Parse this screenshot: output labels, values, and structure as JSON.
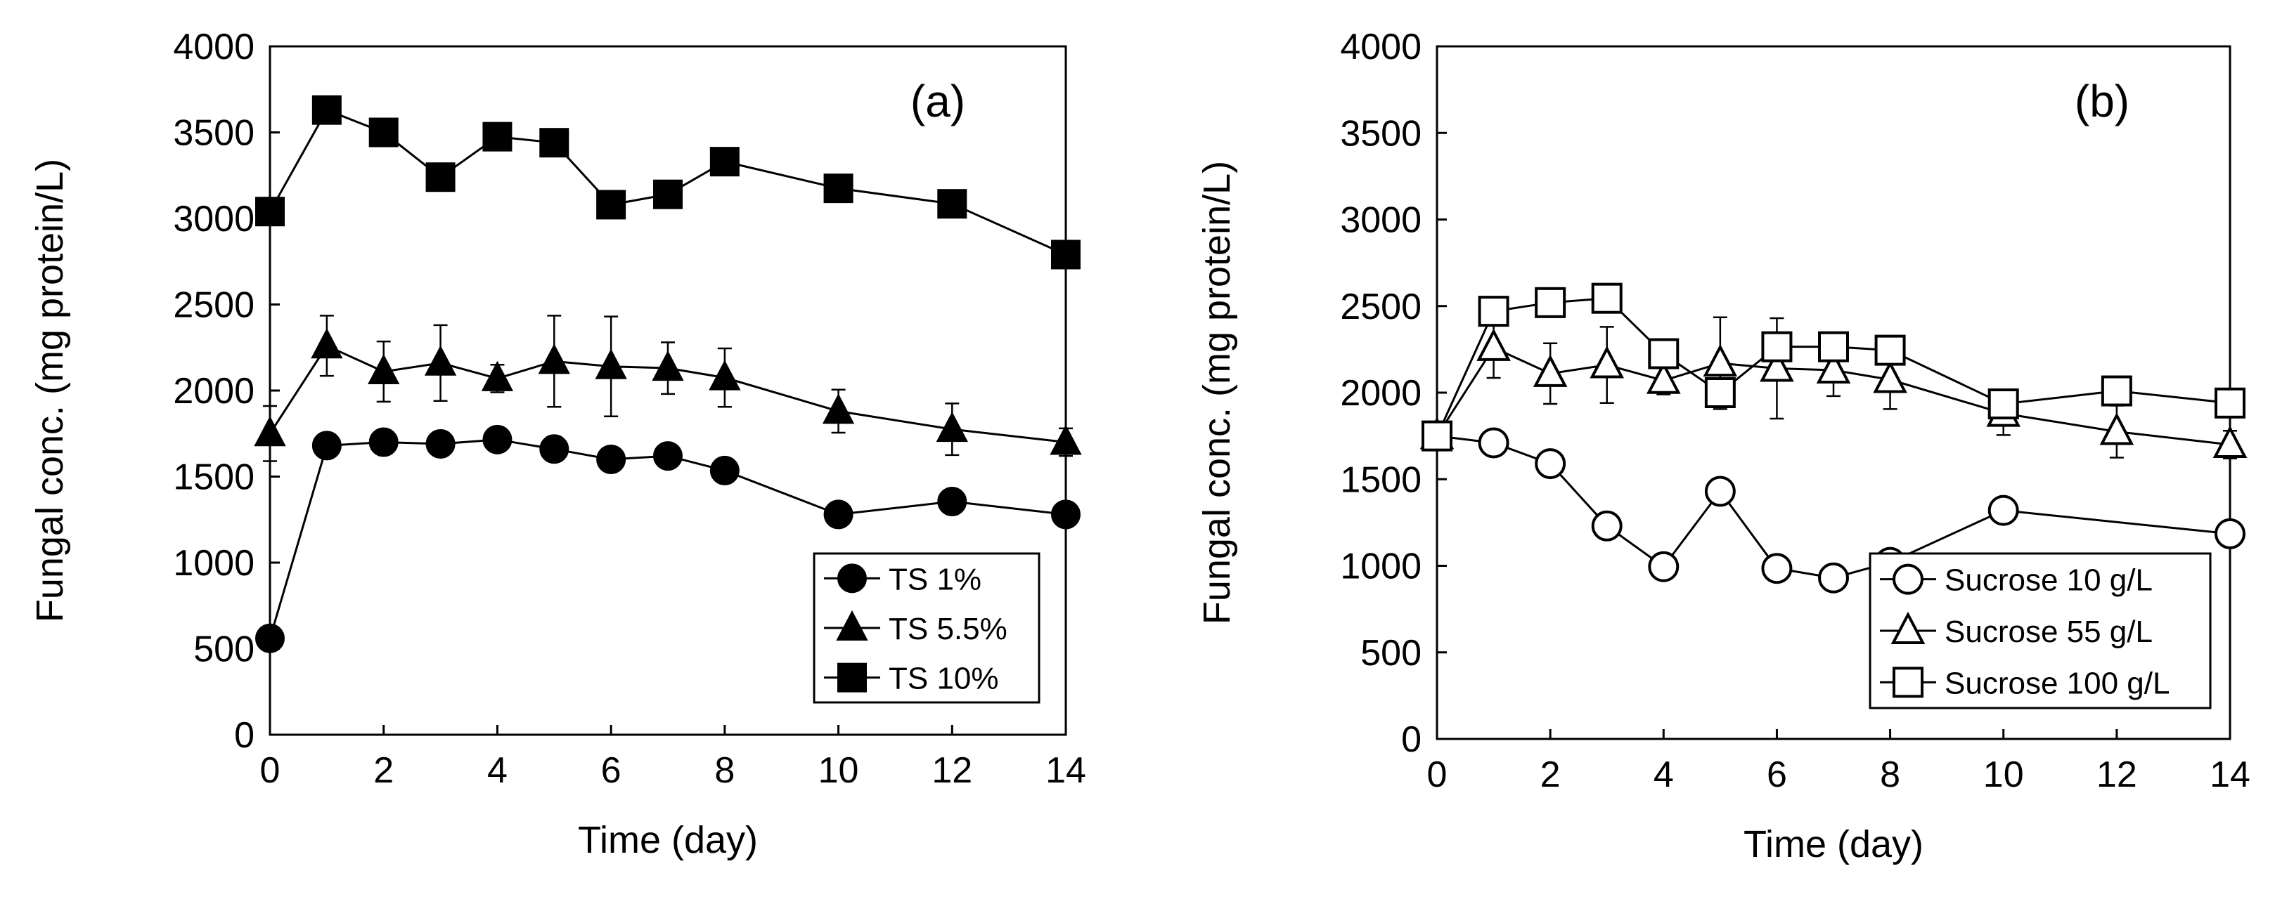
{
  "chart_data": [
    {
      "type": "line",
      "panel_label": "(a)",
      "title": "",
      "xlabel": "Time (day)",
      "ylabel": "Fungal conc. (mg protein/L)",
      "xlim": [
        0,
        14
      ],
      "ylim": [
        0,
        4000
      ],
      "xticks": [
        0,
        2,
        4,
        6,
        8,
        10,
        12,
        14
      ],
      "yticks": [
        0,
        500,
        1000,
        1500,
        2000,
        2500,
        3000,
        3500,
        4000
      ],
      "grid": false,
      "legend_position": "lower-right",
      "series": [
        {
          "name": "TS 1%",
          "marker": "circle",
          "fill": "filled",
          "x": [
            0,
            1,
            2,
            3,
            4,
            5,
            6,
            7,
            8,
            10,
            12,
            14
          ],
          "y": [
            560,
            1680,
            1700,
            1690,
            1715,
            1660,
            1600,
            1620,
            1535,
            1280,
            1355,
            1280
          ],
          "err": [
            0,
            0,
            0,
            0,
            0,
            0,
            0,
            0,
            0,
            0,
            0,
            0
          ]
        },
        {
          "name": "TS 5.5%",
          "marker": "triangle",
          "fill": "filled",
          "x": [
            0,
            1,
            2,
            3,
            4,
            5,
            6,
            7,
            8,
            10,
            12,
            14
          ],
          "y": [
            1750,
            2260,
            2110,
            2160,
            2070,
            2170,
            2140,
            2130,
            2075,
            1880,
            1775,
            1700
          ],
          "err": [
            160,
            175,
            175,
            220,
            80,
            265,
            290,
            150,
            170,
            125,
            150,
            80
          ]
        },
        {
          "name": "TS 10%",
          "marker": "square",
          "fill": "filled",
          "x": [
            0,
            1,
            2,
            3,
            4,
            5,
            6,
            7,
            8,
            10,
            12,
            14
          ],
          "y": [
            3040,
            3630,
            3500,
            3240,
            3475,
            3440,
            3080,
            3140,
            3330,
            3175,
            3085,
            2790
          ],
          "err": [
            0,
            0,
            0,
            0,
            0,
            0,
            0,
            0,
            0,
            0,
            0,
            0
          ]
        }
      ]
    },
    {
      "type": "line",
      "panel_label": "(b)",
      "title": "",
      "xlabel": "Time (day)",
      "ylabel": "Fungal conc. (mg protein/L)",
      "xlim": [
        0,
        14
      ],
      "ylim": [
        0,
        4000
      ],
      "xticks": [
        0,
        2,
        4,
        6,
        8,
        10,
        12,
        14
      ],
      "yticks": [
        0,
        500,
        1000,
        1500,
        2000,
        2500,
        3000,
        3500,
        4000
      ],
      "grid": false,
      "legend_position": "lower-right",
      "series": [
        {
          "name": "Sucrose 10 g/L",
          "marker": "circle",
          "fill": "open",
          "x": [
            0,
            1,
            2,
            3,
            4,
            5,
            6,
            7,
            8,
            10,
            14
          ],
          "y": [
            1750,
            1710,
            1590,
            1230,
            995,
            1430,
            985,
            930,
            1020,
            1320,
            1185
          ],
          "err": [
            0,
            0,
            0,
            0,
            0,
            0,
            0,
            0,
            0,
            0,
            0
          ]
        },
        {
          "name": "Sucrose 55 g/L",
          "marker": "triangle",
          "fill": "open",
          "x": [
            0,
            1,
            2,
            3,
            4,
            5,
            6,
            7,
            8,
            10,
            12,
            14
          ],
          "y": [
            1750,
            2260,
            2110,
            2160,
            2070,
            2170,
            2140,
            2130,
            2075,
            1880,
            1775,
            1700
          ],
          "err": [
            0,
            175,
            175,
            220,
            80,
            265,
            290,
            150,
            170,
            125,
            150,
            80
          ]
        },
        {
          "name": "Sucrose 100 g/L",
          "marker": "square",
          "fill": "open",
          "x": [
            0,
            1,
            2,
            3,
            4,
            5,
            6,
            7,
            8,
            10,
            12,
            14
          ],
          "y": [
            1750,
            2470,
            2520,
            2545,
            2225,
            2000,
            2265,
            2265,
            2245,
            1935,
            2010,
            1940
          ],
          "err": [
            0,
            0,
            0,
            0,
            0,
            0,
            0,
            0,
            0,
            0,
            0,
            0
          ]
        }
      ]
    }
  ],
  "colors": {
    "ink": "#000000",
    "background": "#ffffff",
    "open_marker_fill": "#ffffff"
  }
}
